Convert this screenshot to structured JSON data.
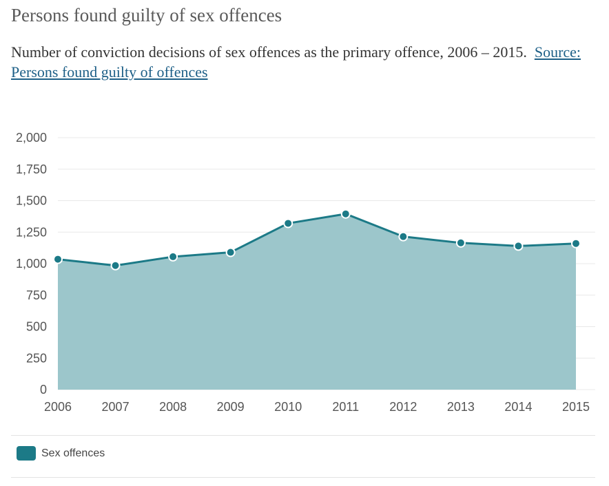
{
  "title": "Persons found guilty of sex offences",
  "subtitle": "Number of conviction decisions of sex offences as the primary offence, 2006 – 2015.",
  "source_link": "Source: Persons found guilty of offences",
  "colors": {
    "line": "#1c7a87",
    "area": "#9cc6cb",
    "grid": "#e8e8e8"
  },
  "chart_data": {
    "type": "area",
    "title": "Persons found guilty of sex offences",
    "xlabel": "",
    "ylabel": "",
    "x": [
      "2006",
      "2007",
      "2008",
      "2009",
      "2010",
      "2011",
      "2012",
      "2013",
      "2014",
      "2015"
    ],
    "y_ticks": [
      "0",
      "250",
      "500",
      "750",
      "1,000",
      "1,250",
      "1,500",
      "1,750",
      "2,000"
    ],
    "ylim": [
      0,
      2000
    ],
    "grid": true,
    "legend_position": "bottom-left",
    "series": [
      {
        "name": "Sex offences",
        "values": [
          1035,
          985,
          1055,
          1090,
          1320,
          1395,
          1215,
          1165,
          1140,
          1160
        ]
      }
    ]
  }
}
